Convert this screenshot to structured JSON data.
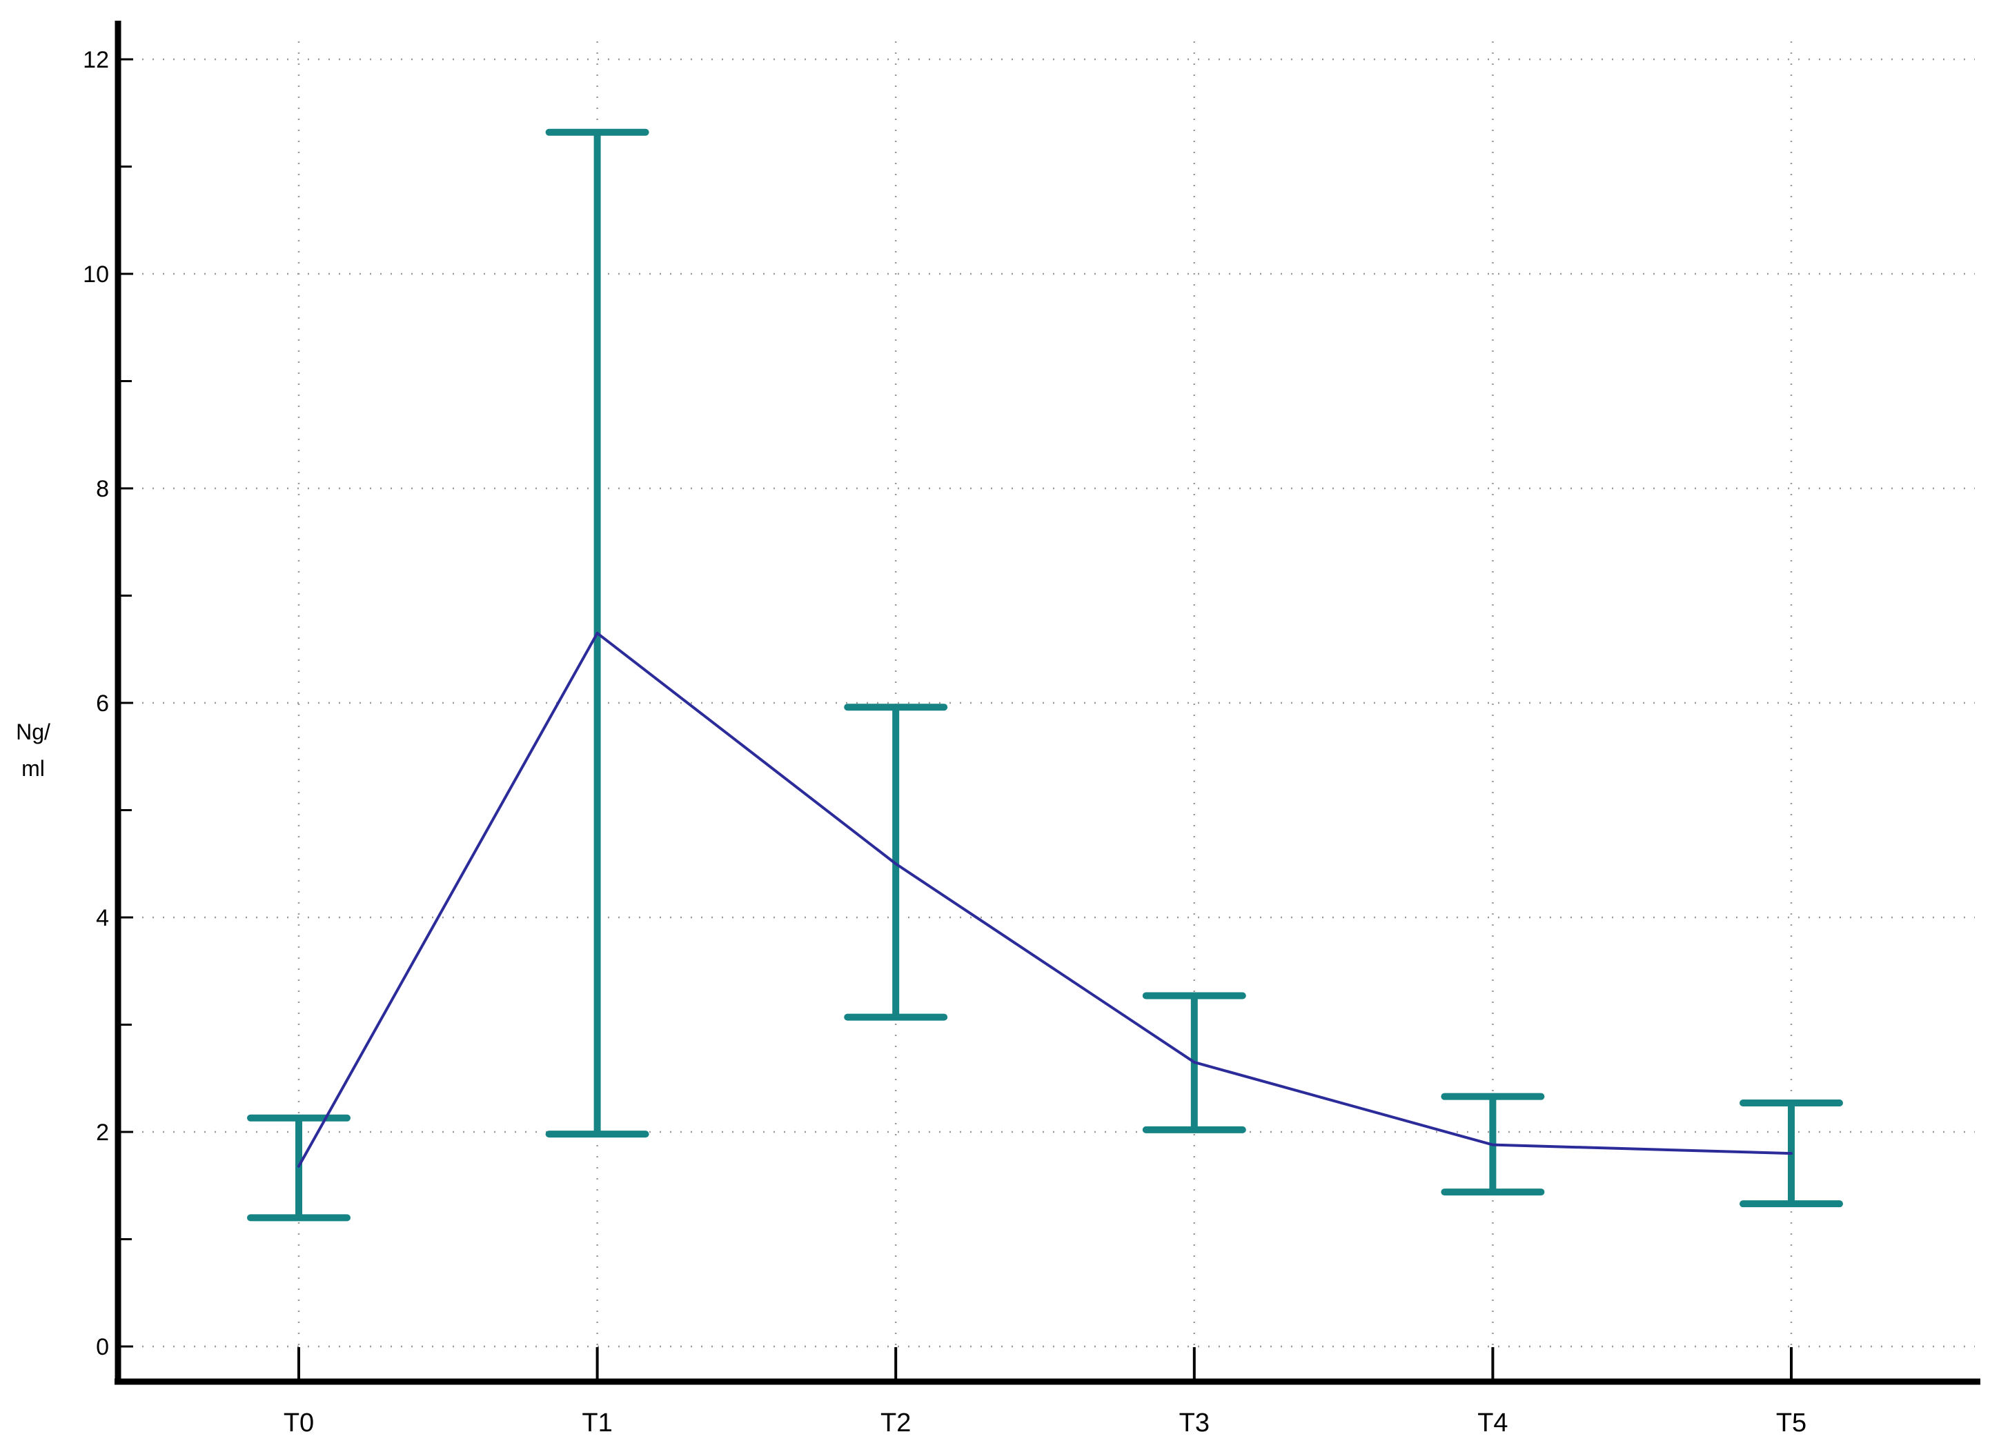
{
  "chart_data": {
    "type": "line",
    "categories": [
      "T0",
      "T1",
      "T2",
      "T3",
      "T4",
      "T5"
    ],
    "series": [
      {
        "values": [
          1.68,
          6.65,
          4.5,
          2.65,
          1.88,
          1.8
        ],
        "error_low": [
          1.2,
          1.98,
          3.07,
          2.02,
          1.44,
          1.33
        ],
        "error_high": [
          2.13,
          11.32,
          5.96,
          3.27,
          2.33,
          2.27
        ]
      }
    ],
    "ylabel_lines": [
      "Ng/",
      "ml"
    ],
    "ylim": [
      0,
      12
    ],
    "y_ticks": [
      0,
      2,
      4,
      6,
      8,
      10,
      12
    ],
    "y_minor_ticks": [
      1,
      3,
      5,
      7,
      9,
      11
    ],
    "grid": true,
    "colors": {
      "line": "#2b2b9a",
      "error_bar": "#168484",
      "axis": "#000000",
      "grid": "#9a9a9a"
    }
  }
}
